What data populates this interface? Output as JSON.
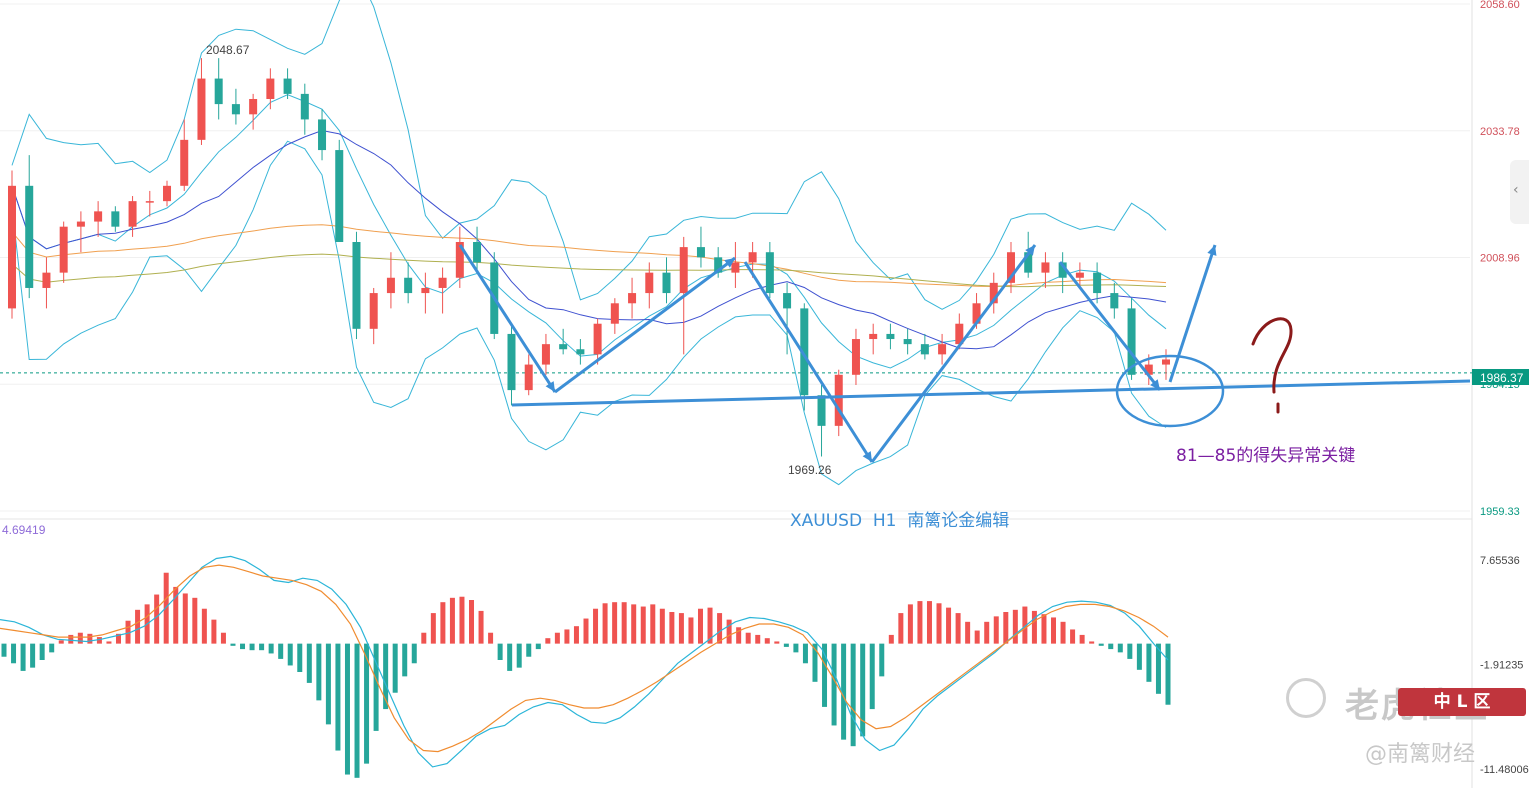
{
  "chart_data": {
    "type": "candlestick",
    "symbol_label": "XAUUSD  H1  南篱论金编辑",
    "price_axis": {
      "labels": [
        "2058.60",
        "2033.78",
        "2008.96",
        "1984.15",
        "1959.33"
      ],
      "values": [
        2058.6,
        2033.78,
        2008.96,
        1984.15,
        1959.33
      ],
      "ylim": [
        1959.33,
        2058.6
      ]
    },
    "current_price": {
      "label": "1986.37",
      "value": 1986.37,
      "color": "#089981"
    },
    "high_marker": {
      "label": "2048.67",
      "value": 2048.67
    },
    "low_marker": {
      "label": "1969.26",
      "value": 1969.26
    },
    "annotation_text": "81—85的得失异常关键",
    "question_mark": "?",
    "colors": {
      "up": "#ef5350",
      "down": "#26a69a",
      "bollinger": "#39b6d8",
      "ma_mid": "#3f51d0",
      "ma_orange": "#f0a050",
      "ma_olive": "#b0b050",
      "arrows": "#3d8fd6",
      "annotation": "#7b1fa2"
    },
    "candles_ohlc": [
      [
        1999,
        2026,
        1997,
        2023
      ],
      [
        2023,
        2029,
        2001,
        2003
      ],
      [
        2003,
        2009,
        1999,
        2006
      ],
      [
        2006,
        2016,
        2004,
        2015
      ],
      [
        2015,
        2018,
        2010,
        2016
      ],
      [
        2016,
        2020,
        2013,
        2018
      ],
      [
        2018,
        2019,
        2014,
        2015
      ],
      [
        2015,
        2021,
        2013,
        2020
      ],
      [
        2020,
        2022,
        2017,
        2020
      ],
      [
        2020,
        2024,
        2019,
        2023
      ],
      [
        2023,
        2036,
        2022,
        2032
      ],
      [
        2032,
        2048,
        2031,
        2044
      ],
      [
        2044,
        2048,
        2036,
        2039
      ],
      [
        2039,
        2042,
        2035,
        2037
      ],
      [
        2037,
        2041,
        2034,
        2040
      ],
      [
        2040,
        2046,
        2038,
        2044
      ],
      [
        2044,
        2046,
        2040,
        2041
      ],
      [
        2041,
        2043,
        2033,
        2036
      ],
      [
        2036,
        2038,
        2028,
        2030
      ],
      [
        2030,
        2032,
        2012,
        2012
      ],
      [
        2012,
        2014,
        1993,
        1995
      ],
      [
        1995,
        2003,
        1992,
        2002
      ],
      [
        2002,
        2010,
        1999,
        2005
      ],
      [
        2005,
        2008,
        2000,
        2002
      ],
      [
        2002,
        2006,
        1998,
        2003
      ],
      [
        2003,
        2007,
        1998,
        2005
      ],
      [
        2005,
        2015,
        2003,
        2012
      ],
      [
        2012,
        2015,
        2006,
        2008
      ],
      [
        2008,
        2010,
        1993,
        1994
      ],
      [
        1994,
        1996,
        1980,
        1983
      ],
      [
        1983,
        1990,
        1982,
        1988
      ],
      [
        1988,
        1994,
        1986,
        1992
      ],
      [
        1992,
        1995,
        1990,
        1991
      ],
      [
        1991,
        1993,
        1988,
        1990
      ],
      [
        1990,
        1997,
        1988,
        1996
      ],
      [
        1996,
        2001,
        1994,
        2000
      ],
      [
        2000,
        2005,
        1997,
        2002
      ],
      [
        2002,
        2008,
        1999,
        2006
      ],
      [
        2006,
        2009,
        2000,
        2002
      ],
      [
        2002,
        2013,
        1990,
        2011
      ],
      [
        2011,
        2015,
        2007,
        2009
      ],
      [
        2009,
        2011,
        2005,
        2006
      ],
      [
        2006,
        2012,
        2003,
        2008
      ],
      [
        2008,
        2012,
        2005,
        2010
      ],
      [
        2010,
        2012,
        2001,
        2002
      ],
      [
        2002,
        2004,
        1990,
        1999
      ],
      [
        1999,
        2000,
        1979,
        1982
      ],
      [
        1982,
        1984,
        1970,
        1976
      ],
      [
        1976,
        1987,
        1974,
        1986
      ],
      [
        1986,
        1995,
        1984,
        1993
      ],
      [
        1993,
        1996,
        1990,
        1994
      ],
      [
        1994,
        1996,
        1991,
        1993
      ],
      [
        1993,
        1995,
        1990,
        1992
      ],
      [
        1992,
        1994,
        1989,
        1990
      ],
      [
        1990,
        1994,
        1988,
        1992
      ],
      [
        1992,
        1998,
        1991,
        1996
      ],
      [
        1996,
        2002,
        1995,
        2000
      ],
      [
        2000,
        2006,
        1998,
        2004
      ],
      [
        2004,
        2012,
        2002,
        2010
      ],
      [
        2010,
        2014,
        2005,
        2006
      ],
      [
        2006,
        2010,
        2003,
        2008
      ],
      [
        2008,
        2010,
        2002,
        2005
      ],
      [
        2005,
        2008,
        2003,
        2006
      ],
      [
        2006,
        2008,
        2000,
        2002
      ],
      [
        2002,
        2004,
        1997,
        1999
      ],
      [
        1999,
        2001,
        1985,
        1986
      ],
      [
        1986,
        1990,
        1984,
        1988
      ],
      [
        1988,
        1991,
        1985,
        1989
      ]
    ],
    "macd": {
      "axis_labels": [
        "7.65536",
        "-1.91235",
        "-11.48006"
      ],
      "axis_values": [
        7.65536,
        -1.91235,
        -11.48006
      ],
      "ylim": [
        -12.5,
        9.5
      ],
      "readout": "4.69419",
      "histogram": [
        -1.2,
        -1.8,
        -2.5,
        -2.2,
        -1.5,
        -0.8,
        0.3,
        0.8,
        1.0,
        0.9,
        0.6,
        0.2,
        0.9,
        2.1,
        3.1,
        3.6,
        4.5,
        6.5,
        5.2,
        4.6,
        4.2,
        3.2,
        2.2,
        1.0,
        -0.2,
        -0.5,
        -0.6,
        -0.6,
        -0.9,
        -1.4,
        -2.0,
        -2.6,
        -3.6,
        -5.2,
        -7.4,
        -9.8,
        -12.0,
        -12.3,
        -11.0,
        -8.0,
        -6.0,
        -4.5,
        -3.0,
        -1.8,
        1.0,
        2.8,
        3.8,
        4.2,
        4.3,
        4.0,
        3.0,
        1.0,
        -1.5,
        -2.5,
        -2.2,
        -1.2,
        -0.5,
        0.5,
        1.0,
        1.3,
        1.6,
        2.3,
        3.2,
        3.7,
        3.8,
        3.8,
        3.6,
        3.4,
        3.6,
        3.2,
        2.9,
        2.8,
        2.4,
        3.2,
        3.3,
        2.8,
        2.2,
        1.5,
        1.0,
        0.8,
        0.5,
        0.2,
        -0.3,
        -0.8,
        -1.8,
        -3.5,
        -5.8,
        -7.5,
        -8.8,
        -9.4,
        -8.5,
        -6.0,
        -3.0,
        0.8,
        2.8,
        3.6,
        3.9,
        3.9,
        3.7,
        3.3,
        2.8,
        2.0,
        1.2,
        2.0,
        2.5,
        2.9,
        3.1,
        3.4,
        3.0,
        2.7,
        2.4,
        2.0,
        1.3,
        0.8,
        0.2,
        -0.2,
        -0.5,
        -0.8,
        -1.4,
        -2.4,
        -3.5,
        -4.6,
        -5.6
      ],
      "dif": [
        2.2,
        2.0,
        1.5,
        0.8,
        0.4,
        0.3,
        0.2,
        0.4,
        0.7,
        1.0,
        1.6,
        2.6,
        4.0,
        5.5,
        7.0,
        7.8,
        8.0,
        7.6,
        6.8,
        5.8,
        5.6,
        6.0,
        5.8,
        5.0,
        3.6,
        1.5,
        -1.5,
        -4.5,
        -7.5,
        -10.0,
        -11.3,
        -11.0,
        -9.8,
        -8.5,
        -7.8,
        -7.5,
        -6.5,
        -5.8,
        -5.4,
        -5.6,
        -6.5,
        -7.2,
        -7.3,
        -6.8,
        -5.8,
        -4.6,
        -3.2,
        -1.8,
        -0.8,
        0.2,
        1.2,
        2.0,
        2.4,
        2.3,
        2.0,
        1.6,
        1.0,
        -0.5,
        -3.2,
        -6.5,
        -8.8,
        -9.8,
        -9.3,
        -7.8,
        -6.0,
        -4.8,
        -3.8,
        -2.8,
        -1.8,
        -0.8,
        0.4,
        1.5,
        2.6,
        3.4,
        3.8,
        3.9,
        3.8,
        3.5,
        2.8,
        1.6,
        0.0,
        -1.5
      ],
      "dea": [
        1.4,
        1.2,
        1.0,
        0.8,
        0.6,
        0.6,
        0.6,
        0.8,
        1.2,
        1.6,
        2.4,
        3.6,
        5.0,
        6.2,
        7.0,
        7.2,
        7.0,
        6.6,
        6.2,
        6.0,
        5.8,
        5.4,
        4.8,
        3.6,
        1.8,
        -1.0,
        -4.0,
        -6.8,
        -8.8,
        -9.8,
        -9.9,
        -9.4,
        -8.8,
        -8.0,
        -7.0,
        -6.0,
        -5.2,
        -5.0,
        -5.2,
        -5.6,
        -5.9,
        -5.9,
        -5.6,
        -5.0,
        -4.3,
        -3.5,
        -2.6,
        -1.7,
        -0.8,
        0.0,
        0.8,
        1.4,
        1.8,
        1.8,
        1.5,
        0.8,
        -0.8,
        -3.0,
        -5.4,
        -7.0,
        -7.8,
        -7.6,
        -6.8,
        -5.8,
        -4.8,
        -3.8,
        -2.8,
        -1.8,
        -0.8,
        0.2,
        1.2,
        2.2,
        2.9,
        3.4,
        3.6,
        3.6,
        3.4,
        3.0,
        2.4,
        1.6,
        0.6
      ]
    }
  }
}
